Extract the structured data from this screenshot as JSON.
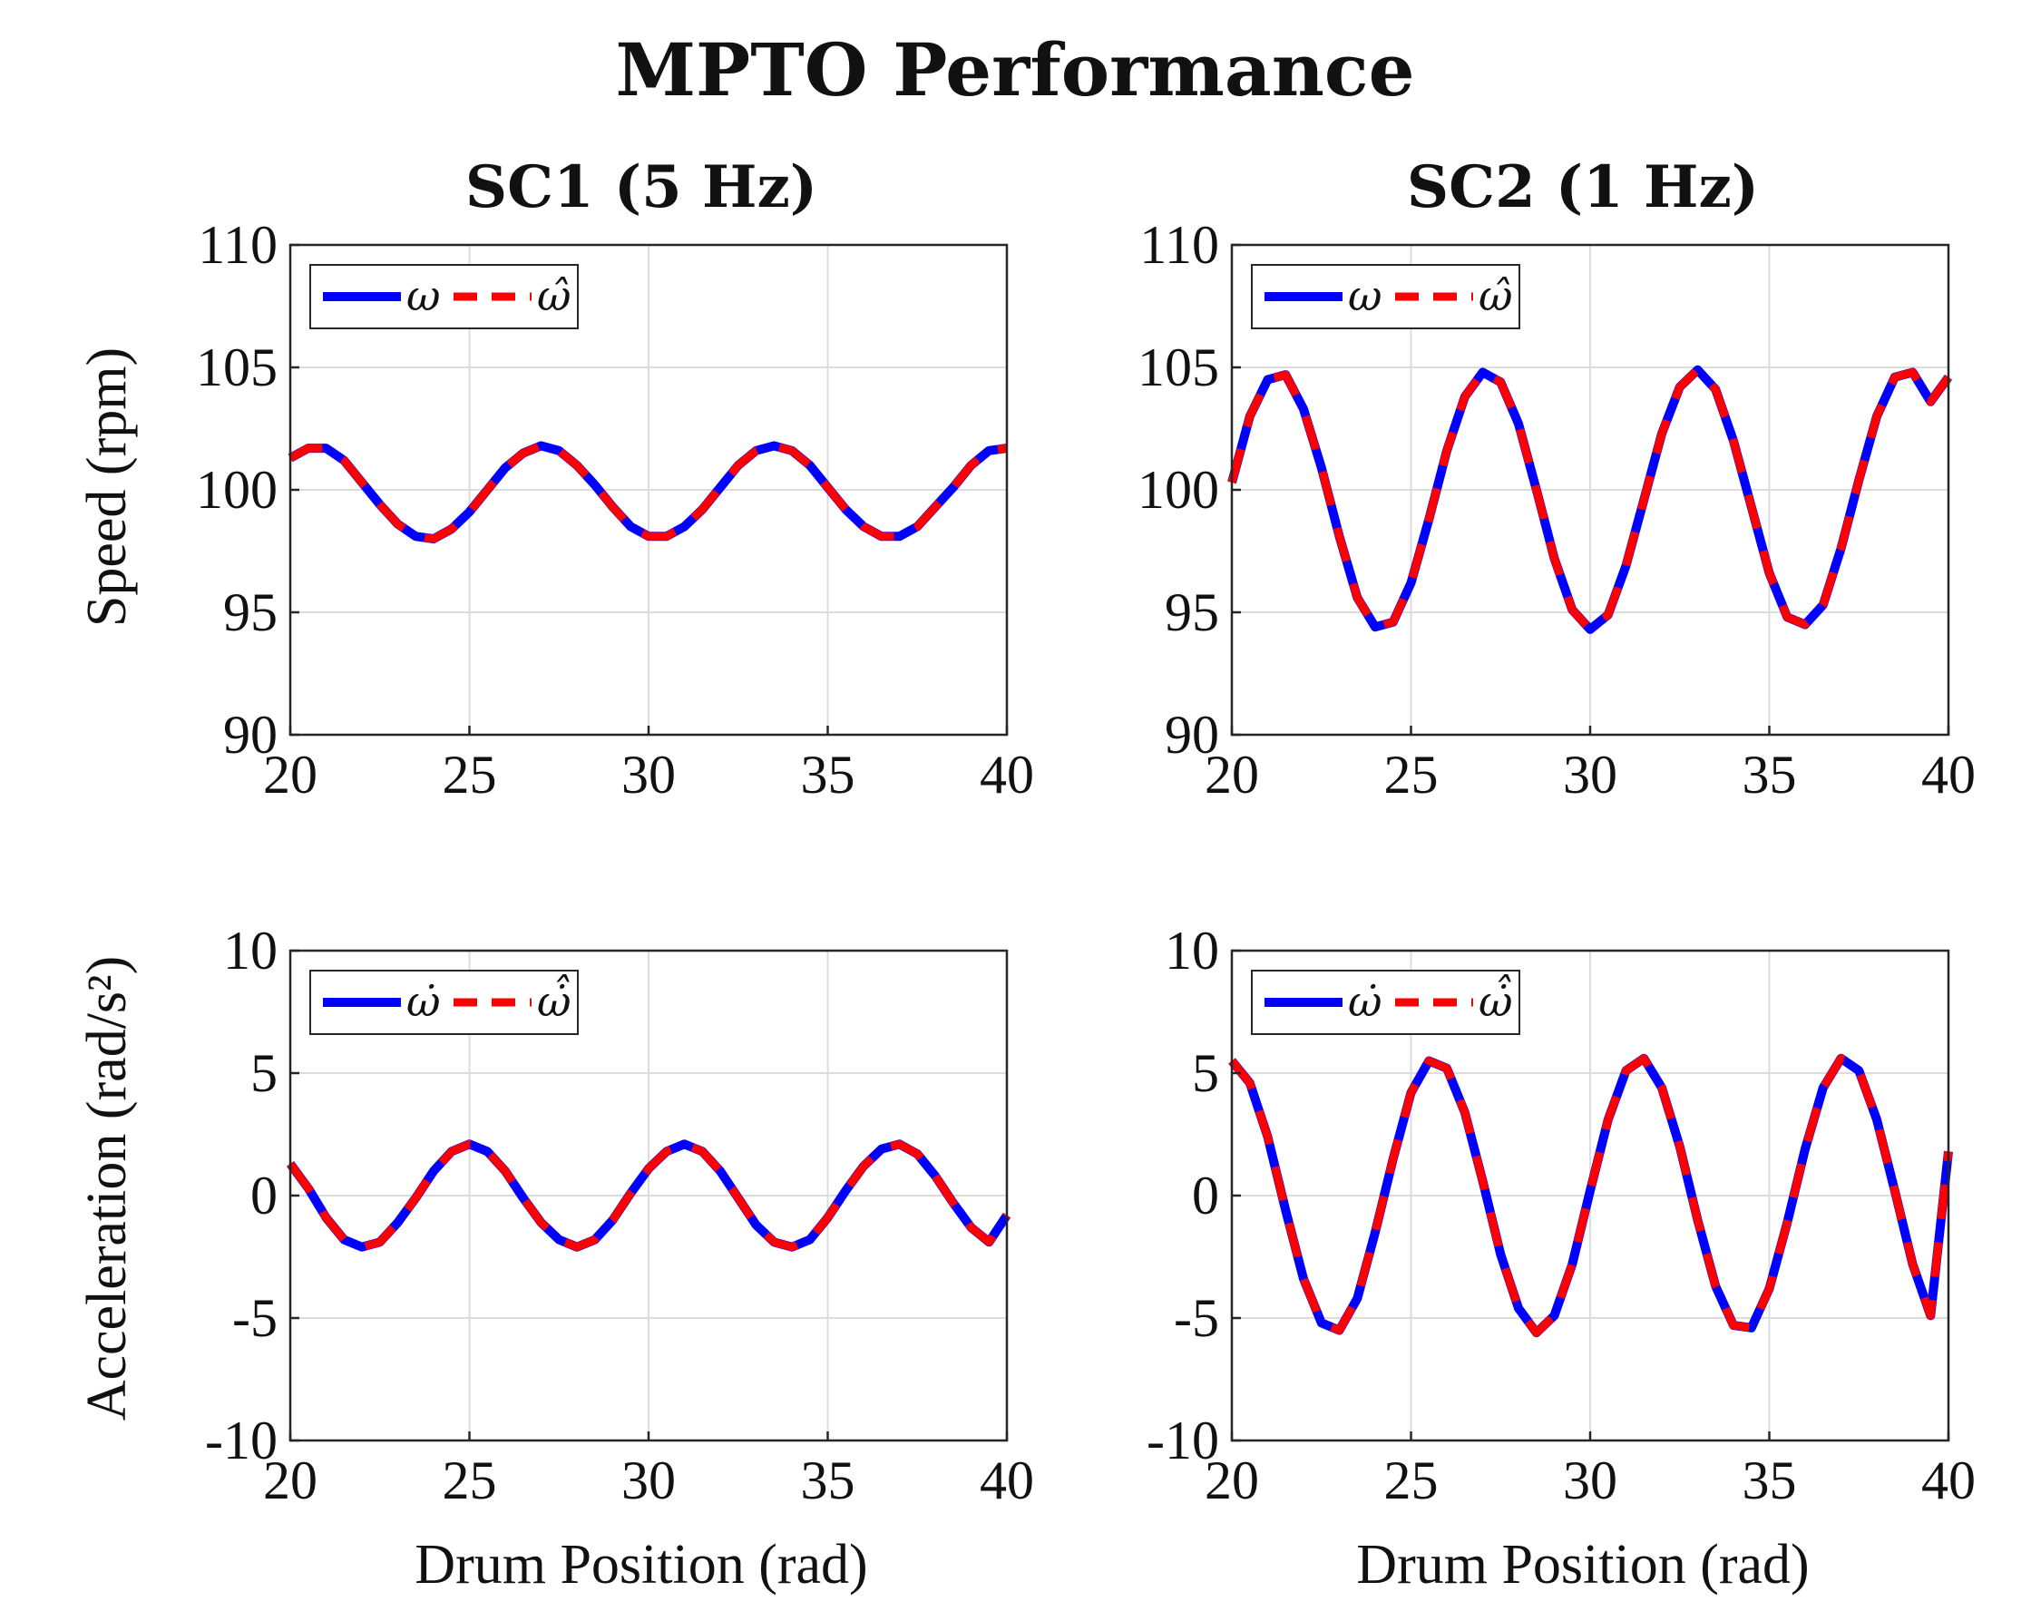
{
  "figure": {
    "title": "MPTO Performance",
    "column_titles": [
      "SC1 (5 Hz)",
      "SC2 (1 Hz)"
    ],
    "ylabels": [
      "Speed (rpm)",
      "Acceleration (rad/s²)"
    ],
    "xlabel": "Drum Position (rad)"
  },
  "colors": {
    "measured": "#0000ff",
    "estimated": "#ff0000"
  },
  "chart_data": [
    {
      "type": "line",
      "title": "SC1 (5 Hz)",
      "xlabel": "",
      "ylabel": "Speed (rpm)",
      "xlim": [
        20,
        40
      ],
      "ylim": [
        90,
        110
      ],
      "xticks": [
        "20",
        "25",
        "30",
        "35",
        "40"
      ],
      "yticks": [
        "90",
        "95",
        "100",
        "105",
        "110"
      ],
      "grid": true,
      "legend": "top-left",
      "series": [
        {
          "name": "ω",
          "style": "solid",
          "x": [
            20,
            20.5,
            21,
            21.5,
            22,
            22.5,
            23,
            23.5,
            24,
            24.5,
            25,
            25.5,
            26,
            26.5,
            27,
            27.5,
            28,
            28.5,
            29,
            29.5,
            30,
            30.5,
            31,
            31.5,
            32,
            32.5,
            33,
            33.5,
            34,
            34.5,
            35,
            35.5,
            36,
            36.5,
            37,
            37.5,
            38,
            38.5,
            39,
            39.5,
            40
          ],
          "y": [
            101.3,
            101.7,
            101.7,
            101.2,
            100.3,
            99.4,
            98.6,
            98.1,
            98.0,
            98.4,
            99.1,
            100.0,
            100.9,
            101.5,
            101.8,
            101.6,
            101.0,
            100.2,
            99.3,
            98.5,
            98.1,
            98.1,
            98.5,
            99.2,
            100.1,
            101.0,
            101.6,
            101.8,
            101.6,
            101.0,
            100.1,
            99.2,
            98.5,
            98.1,
            98.1,
            98.5,
            99.3,
            100.1,
            101.0,
            101.6,
            101.7
          ]
        },
        {
          "name": "ω̂",
          "style": "dashed",
          "x": [
            20,
            20.5,
            21,
            21.5,
            22,
            22.5,
            23,
            23.5,
            24,
            24.5,
            25,
            25.5,
            26,
            26.5,
            27,
            27.5,
            28,
            28.5,
            29,
            29.5,
            30,
            30.5,
            31,
            31.5,
            32,
            32.5,
            33,
            33.5,
            34,
            34.5,
            35,
            35.5,
            36,
            36.5,
            37,
            37.5,
            38,
            38.5,
            39,
            39.5,
            40
          ],
          "y": [
            101.3,
            101.7,
            101.7,
            101.2,
            100.3,
            99.4,
            98.6,
            98.1,
            98.0,
            98.4,
            99.1,
            100.0,
            100.9,
            101.5,
            101.8,
            101.6,
            101.0,
            100.2,
            99.3,
            98.5,
            98.1,
            98.1,
            98.5,
            99.2,
            100.1,
            101.0,
            101.6,
            101.8,
            101.6,
            101.0,
            100.1,
            99.2,
            98.5,
            98.1,
            98.1,
            98.5,
            99.3,
            100.1,
            101.0,
            101.6,
            101.7
          ]
        }
      ]
    },
    {
      "type": "line",
      "title": "SC2 (1 Hz)",
      "xlabel": "",
      "ylabel": "",
      "xlim": [
        20,
        40
      ],
      "ylim": [
        90,
        110
      ],
      "xticks": [
        "20",
        "25",
        "30",
        "35",
        "40"
      ],
      "yticks": [
        "90",
        "95",
        "100",
        "105",
        "110"
      ],
      "grid": true,
      "legend": "top-left",
      "series": [
        {
          "name": "ω",
          "style": "solid",
          "x": [
            20,
            20.5,
            21,
            21.5,
            22,
            22.5,
            23,
            23.5,
            24,
            24.5,
            25,
            25.5,
            26,
            26.5,
            27,
            27.5,
            28,
            28.5,
            29,
            29.5,
            30,
            30.5,
            31,
            31.5,
            32,
            32.5,
            33,
            33.5,
            34,
            34.5,
            35,
            35.5,
            36,
            36.5,
            37,
            37.5,
            38,
            38.5,
            39,
            39.5,
            40
          ],
          "y": [
            100.3,
            103.0,
            104.5,
            104.7,
            103.3,
            100.9,
            98.1,
            95.6,
            94.4,
            94.6,
            96.2,
            98.8,
            101.6,
            103.8,
            104.8,
            104.4,
            102.7,
            100.0,
            97.2,
            95.1,
            94.3,
            94.9,
            96.9,
            99.6,
            102.3,
            104.2,
            104.9,
            104.1,
            102.0,
            99.3,
            96.6,
            94.8,
            94.5,
            95.3,
            97.6,
            100.4,
            103.0,
            104.6,
            104.8,
            103.6,
            104.6
          ]
        },
        {
          "name": "ω̂",
          "style": "dashed",
          "x": [
            20,
            20.5,
            21,
            21.5,
            22,
            22.5,
            23,
            23.5,
            24,
            24.5,
            25,
            25.5,
            26,
            26.5,
            27,
            27.5,
            28,
            28.5,
            29,
            29.5,
            30,
            30.5,
            31,
            31.5,
            32,
            32.5,
            33,
            33.5,
            34,
            34.5,
            35,
            35.5,
            36,
            36.5,
            37,
            37.5,
            38,
            38.5,
            39,
            39.5,
            40
          ],
          "y": [
            100.3,
            103.0,
            104.5,
            104.7,
            103.3,
            100.9,
            98.1,
            95.6,
            94.4,
            94.6,
            96.2,
            98.8,
            101.6,
            103.8,
            104.8,
            104.4,
            102.7,
            100.0,
            97.2,
            95.1,
            94.3,
            94.9,
            96.9,
            99.6,
            102.3,
            104.2,
            104.9,
            104.1,
            102.0,
            99.3,
            96.6,
            94.8,
            94.5,
            95.3,
            97.6,
            100.4,
            103.0,
            104.6,
            104.8,
            103.6,
            104.6
          ]
        }
      ]
    },
    {
      "type": "line",
      "title": "",
      "xlabel": "Drum Position (rad)",
      "ylabel": "Acceleration (rad/s²)",
      "xlim": [
        20,
        40
      ],
      "ylim": [
        -10,
        10
      ],
      "xticks": [
        "20",
        "25",
        "30",
        "35",
        "40"
      ],
      "yticks": [
        "-10",
        "-5",
        "0",
        "5",
        "10"
      ],
      "grid": true,
      "legend": "top-left",
      "series": [
        {
          "name": "ω̇",
          "style": "solid",
          "x": [
            20,
            20.5,
            21,
            21.5,
            22,
            22.5,
            23,
            23.5,
            24,
            24.5,
            25,
            25.5,
            26,
            26.5,
            27,
            27.5,
            28,
            28.5,
            29,
            29.5,
            30,
            30.5,
            31,
            31.5,
            32,
            32.5,
            33,
            33.5,
            34,
            34.5,
            35,
            35.5,
            36,
            36.5,
            37,
            37.5,
            38,
            38.5,
            39,
            39.5,
            40
          ],
          "y": [
            1.3,
            0.3,
            -0.9,
            -1.8,
            -2.1,
            -1.9,
            -1.1,
            -0.1,
            1.0,
            1.8,
            2.1,
            1.8,
            1.0,
            -0.1,
            -1.1,
            -1.8,
            -2.1,
            -1.8,
            -1.0,
            0.1,
            1.1,
            1.8,
            2.1,
            1.8,
            1.0,
            -0.1,
            -1.2,
            -1.9,
            -2.1,
            -1.8,
            -0.9,
            0.2,
            1.2,
            1.9,
            2.1,
            1.7,
            0.8,
            -0.3,
            -1.3,
            -1.9,
            -0.8
          ]
        },
        {
          "name": "ω̇̂",
          "style": "dashed",
          "x": [
            20,
            20.5,
            21,
            21.5,
            22,
            22.5,
            23,
            23.5,
            24,
            24.5,
            25,
            25.5,
            26,
            26.5,
            27,
            27.5,
            28,
            28.5,
            29,
            29.5,
            30,
            30.5,
            31,
            31.5,
            32,
            32.5,
            33,
            33.5,
            34,
            34.5,
            35,
            35.5,
            36,
            36.5,
            37,
            37.5,
            38,
            38.5,
            39,
            39.5,
            40
          ],
          "y": [
            1.3,
            0.3,
            -0.9,
            -1.8,
            -2.1,
            -1.9,
            -1.1,
            -0.1,
            1.0,
            1.8,
            2.1,
            1.8,
            1.0,
            -0.1,
            -1.1,
            -1.8,
            -2.1,
            -1.8,
            -1.0,
            0.1,
            1.1,
            1.8,
            2.1,
            1.8,
            1.0,
            -0.1,
            -1.2,
            -1.9,
            -2.1,
            -1.8,
            -0.9,
            0.2,
            1.2,
            1.9,
            2.1,
            1.7,
            0.8,
            -0.3,
            -1.3,
            -1.9,
            -0.8
          ]
        }
      ]
    },
    {
      "type": "line",
      "title": "",
      "xlabel": "Drum Position (rad)",
      "ylabel": "",
      "xlim": [
        20,
        40
      ],
      "ylim": [
        -10,
        10
      ],
      "xticks": [
        "20",
        "25",
        "30",
        "35",
        "40"
      ],
      "yticks": [
        "-10",
        "-5",
        "0",
        "5",
        "10"
      ],
      "grid": true,
      "legend": "top-left",
      "series": [
        {
          "name": "ω̇",
          "style": "solid",
          "x": [
            20,
            20.5,
            21,
            21.5,
            22,
            22.5,
            23,
            23.5,
            24,
            24.5,
            25,
            25.5,
            26,
            26.5,
            27,
            27.5,
            28,
            28.5,
            29,
            29.5,
            30,
            30.5,
            31,
            31.5,
            32,
            32.5,
            33,
            33.5,
            34,
            34.5,
            35,
            35.5,
            36,
            36.5,
            37,
            37.5,
            38,
            38.5,
            39,
            39.5,
            40
          ],
          "y": [
            5.5,
            4.6,
            2.4,
            -0.6,
            -3.4,
            -5.2,
            -5.5,
            -4.2,
            -1.5,
            1.5,
            4.2,
            5.5,
            5.2,
            3.4,
            0.6,
            -2.4,
            -4.6,
            -5.6,
            -4.9,
            -2.8,
            0.2,
            3.1,
            5.1,
            5.6,
            4.4,
            2.0,
            -1.0,
            -3.7,
            -5.3,
            -5.4,
            -3.8,
            -1.1,
            1.9,
            4.4,
            5.6,
            5.1,
            3.1,
            0.2,
            -2.8,
            -4.9,
            1.8
          ]
        },
        {
          "name": "ω̇̂",
          "style": "dashed",
          "x": [
            20,
            20.5,
            21,
            21.5,
            22,
            22.5,
            23,
            23.5,
            24,
            24.5,
            25,
            25.5,
            26,
            26.5,
            27,
            27.5,
            28,
            28.5,
            29,
            29.5,
            30,
            30.5,
            31,
            31.5,
            32,
            32.5,
            33,
            33.5,
            34,
            34.5,
            35,
            35.5,
            36,
            36.5,
            37,
            37.5,
            38,
            38.5,
            39,
            39.5,
            40
          ],
          "y": [
            5.5,
            4.6,
            2.4,
            -0.6,
            -3.4,
            -5.2,
            -5.5,
            -4.2,
            -1.5,
            1.5,
            4.2,
            5.5,
            5.2,
            3.4,
            0.6,
            -2.4,
            -4.6,
            -5.6,
            -4.9,
            -2.8,
            0.2,
            3.1,
            5.1,
            5.6,
            4.4,
            2.0,
            -1.0,
            -3.7,
            -5.3,
            -5.4,
            -3.8,
            -1.1,
            1.9,
            4.4,
            5.6,
            5.1,
            3.1,
            0.2,
            -2.8,
            -4.9,
            1.8
          ]
        }
      ]
    }
  ]
}
